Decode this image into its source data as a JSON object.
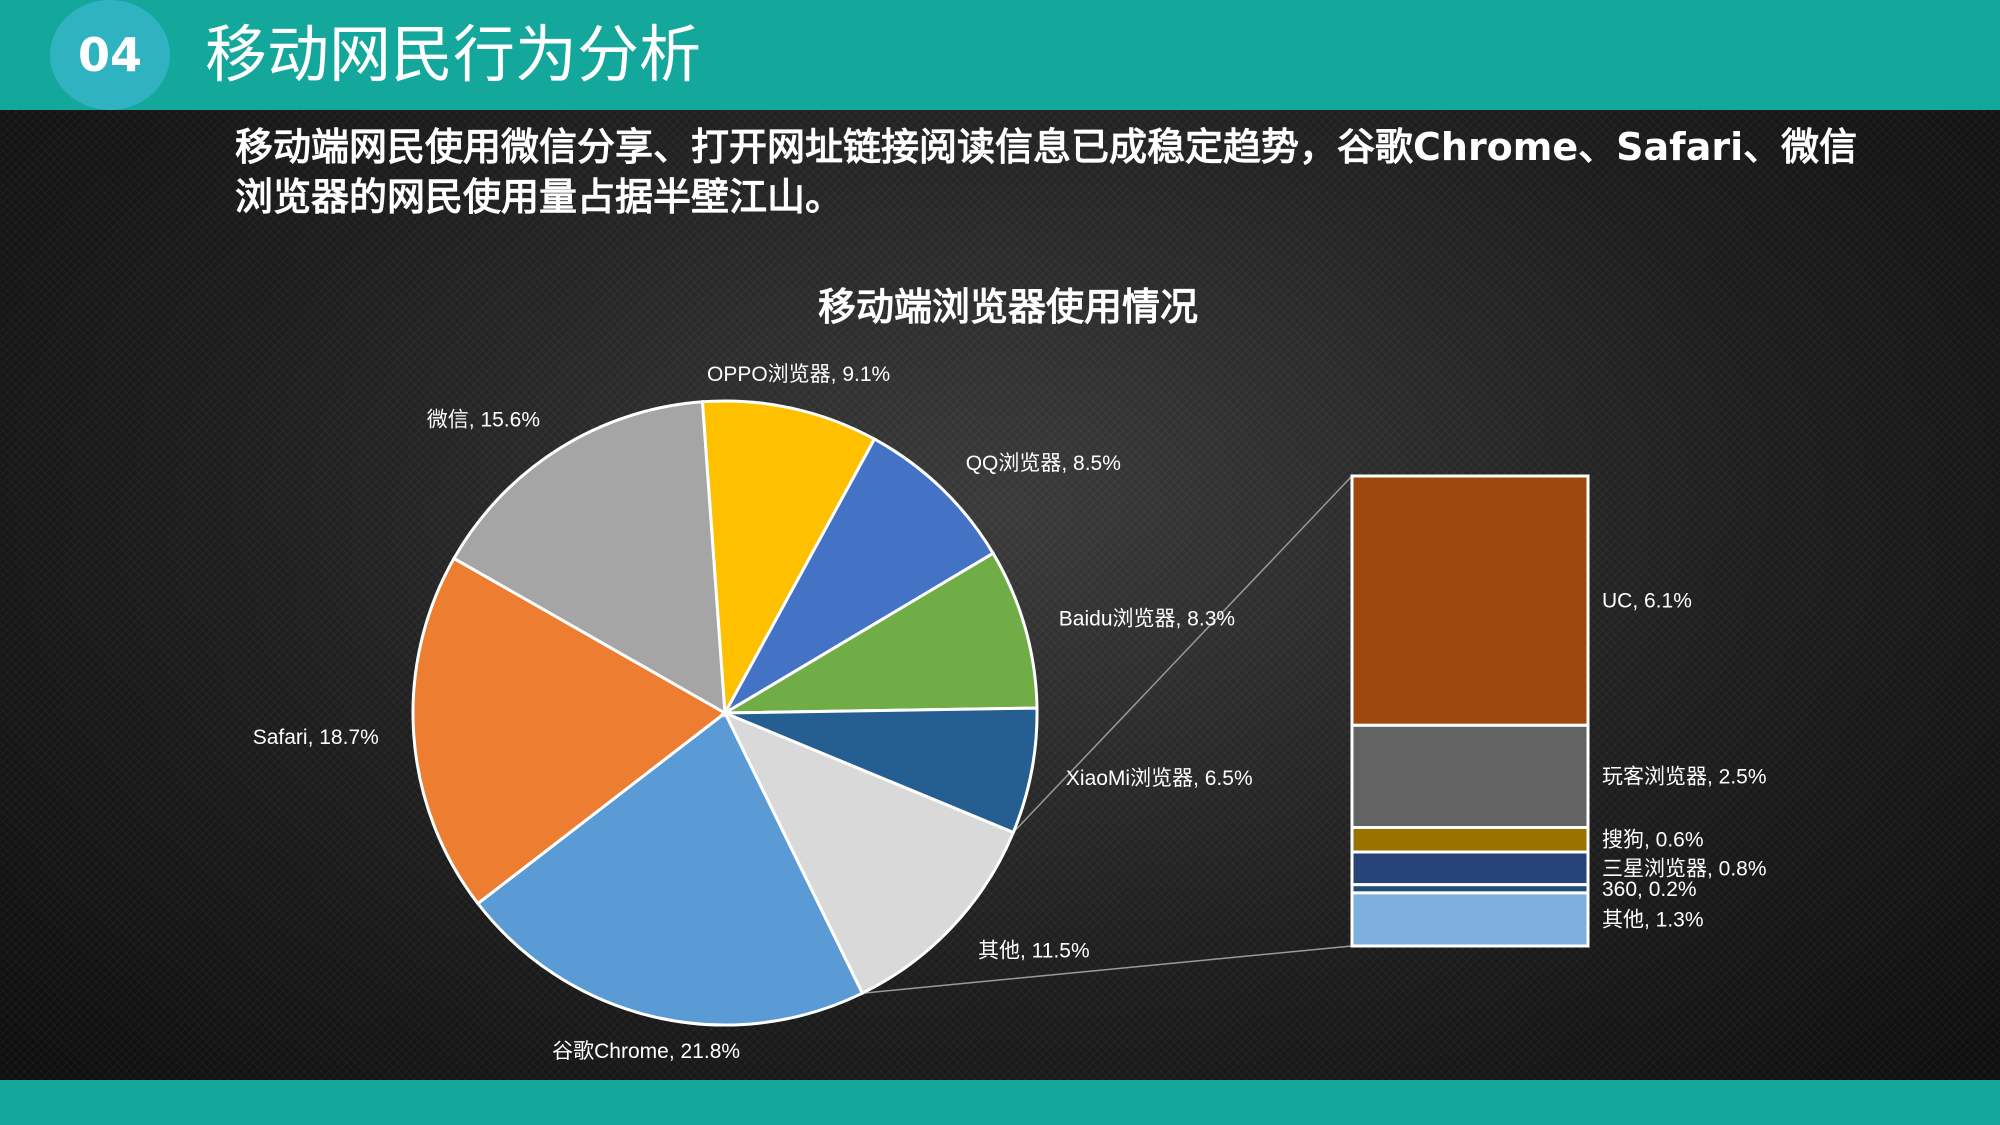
{
  "header": {
    "badge": "04",
    "title": "移动网民行为分析"
  },
  "subtitle": "移动端网民使用微信分享、打开网址链接阅读信息已成稳定趋势，谷歌Chrome、Safari、微信浏览器的网民使用量占据半壁江山。",
  "chart_data": {
    "type": "bar-of-pie",
    "title": "移动端浏览器使用情况",
    "unit": "%",
    "pie": [
      {
        "name": "其他",
        "value": 11.5,
        "color": "#d9d9d9",
        "label": "其他, 11.5%"
      },
      {
        "name": "谷歌Chrome",
        "value": 21.8,
        "color": "#5b9bd5",
        "label": "谷歌Chrome, 21.8%"
      },
      {
        "name": "Safari",
        "value": 18.7,
        "color": "#ed7d31",
        "label": "Safari, 18.7%"
      },
      {
        "name": "微信",
        "value": 15.6,
        "color": "#a5a5a5",
        "label": "微信, 15.6%"
      },
      {
        "name": "OPPO浏览器",
        "value": 9.1,
        "color": "#ffc000",
        "label": "OPPO浏览器, 9.1%"
      },
      {
        "name": "QQ浏览器",
        "value": 8.5,
        "color": "#4472c4",
        "label": "QQ浏览器, 8.5%"
      },
      {
        "name": "Baidu浏览器",
        "value": 8.3,
        "color": "#70ad47",
        "label": "Baidu浏览器, 8.3%"
      },
      {
        "name": "XiaoMi浏览器",
        "value": 6.5,
        "color": "#255e91",
        "label": "XiaoMi浏览器, 6.5%"
      }
    ],
    "bar": [
      {
        "name": "UC",
        "value": 6.1,
        "color": "#9e480e",
        "label": "UC, 6.1%"
      },
      {
        "name": "玩客浏览器",
        "value": 2.5,
        "color": "#636363",
        "label": "玩客浏览器, 2.5%"
      },
      {
        "name": "搜狗",
        "value": 0.6,
        "color": "#997300",
        "label": "搜狗, 0.6%"
      },
      {
        "name": "三星浏览器",
        "value": 0.8,
        "color": "#264478",
        "label": "三星浏览器, 0.8%"
      },
      {
        "name": "360",
        "value": 0.2,
        "color": "#1f4e79",
        "label": "360, 0.2%"
      },
      {
        "name": "其他",
        "value": 1.3,
        "color": "#7cafdd",
        "label": "其他, 1.3%"
      }
    ]
  }
}
